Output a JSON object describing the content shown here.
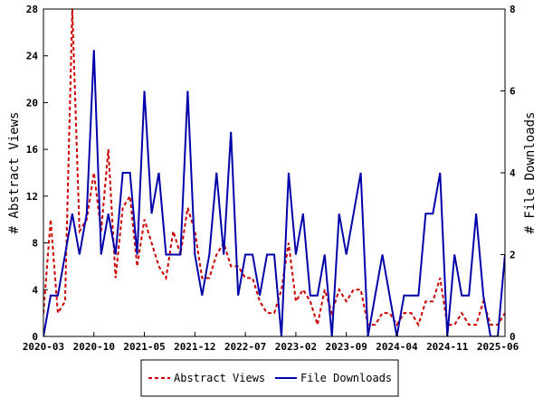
{
  "chart_data": {
    "type": "line",
    "x": [
      "2020-03",
      "2020-04",
      "2020-05",
      "2020-06",
      "2020-07",
      "2020-08",
      "2020-09",
      "2020-10",
      "2020-11",
      "2020-12",
      "2021-01",
      "2021-02",
      "2021-03",
      "2021-04",
      "2021-05",
      "2021-06",
      "2021-07",
      "2021-08",
      "2021-09",
      "2021-10",
      "2021-11",
      "2021-12",
      "2022-01",
      "2022-02",
      "2022-03",
      "2022-04",
      "2022-05",
      "2022-06",
      "2022-07",
      "2022-08",
      "2022-09",
      "2022-10",
      "2022-11",
      "2022-12",
      "2023-01",
      "2023-02",
      "2023-03",
      "2023-04",
      "2023-05",
      "2023-06",
      "2023-07",
      "2023-08",
      "2023-09",
      "2023-10",
      "2023-11",
      "2023-12",
      "2024-01",
      "2024-02",
      "2024-03",
      "2024-04",
      "2024-05",
      "2024-06",
      "2024-07",
      "2024-08",
      "2024-09",
      "2024-10",
      "2024-11",
      "2024-12",
      "2025-01",
      "2025-02",
      "2025-03",
      "2025-04",
      "2025-05",
      "2025-06",
      "2025-07"
    ],
    "x_tick_labels": [
      "2020-03",
      "2020-10",
      "2021-05",
      "2021-12",
      "2022-07",
      "2023-02",
      "2023-09",
      "2024-04",
      "2024-11",
      "2025-06"
    ],
    "series": [
      {
        "name": "Abstract Views",
        "axis": "left",
        "color": "#cc0000",
        "style": "dashed",
        "values": [
          2,
          10,
          2,
          3,
          28,
          9,
          10,
          14,
          9,
          16,
          5,
          11,
          12,
          6,
          10,
          8,
          6,
          5,
          9,
          7,
          11,
          9,
          5,
          5,
          7,
          8,
          6,
          6,
          5,
          5,
          3,
          2,
          2,
          4,
          8,
          3,
          4,
          3,
          1,
          4,
          2,
          4,
          3,
          4,
          4,
          1,
          1,
          2,
          2,
          1,
          2,
          2,
          1,
          3,
          3,
          5,
          1,
          1,
          2,
          1,
          1,
          3,
          1,
          1,
          2
        ]
      },
      {
        "name": "File Downloads",
        "axis": "right",
        "color": "#0000aa",
        "style": "solid",
        "values": [
          0,
          1,
          1,
          2,
          3,
          2,
          3,
          7,
          2,
          3,
          2,
          4,
          4,
          2,
          6,
          3,
          4,
          2,
          2,
          2,
          6,
          2,
          1,
          2,
          4,
          2,
          5,
          1,
          2,
          2,
          1,
          2,
          2,
          0,
          4,
          2,
          3,
          1,
          1,
          2,
          0,
          3,
          2,
          3,
          4,
          0,
          1,
          2,
          1,
          0,
          1,
          1,
          1,
          3,
          3,
          4,
          0,
          2,
          1,
          1,
          3,
          1,
          0,
          0,
          2
        ]
      }
    ],
    "ylabel": "# Abstract Views",
    "y2label": "# File Downloads",
    "ylim": [
      0,
      28
    ],
    "y2lim": [
      0,
      8
    ],
    "yticks": [
      0,
      4,
      8,
      12,
      16,
      20,
      24,
      28
    ],
    "y2ticks": [
      0,
      2,
      4,
      6,
      8
    ],
    "grid": false,
    "legend_position": "bottom"
  }
}
